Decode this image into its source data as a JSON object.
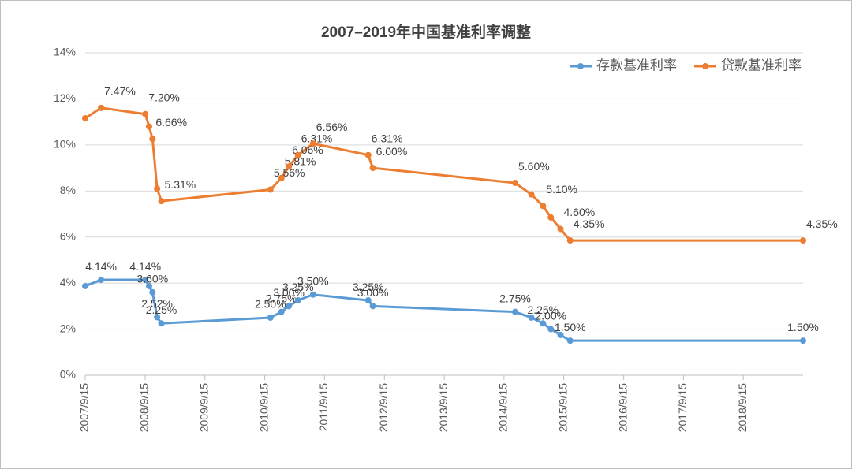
{
  "chart_data": {
    "type": "line",
    "title": "2007–2019年中国基准利率调整",
    "stacked": true,
    "x": [
      "2007/9/15",
      "2007/12/21",
      "2008/9/16",
      "2008/10/9",
      "2008/10/30",
      "2008/11/27",
      "2008/12/23",
      "2010/10/20",
      "2010/12/26",
      "2011/2/9",
      "2011/4/6",
      "2011/7/7",
      "2012/6/8",
      "2012/7/6",
      "2014/11/22",
      "2015/3/1",
      "2015/5/11",
      "2015/6/28",
      "2015/8/26",
      "2015/10/24",
      "2019/9/15"
    ],
    "series": [
      {
        "name": "存款基准利率",
        "color": "#5b9bd5",
        "values": [
          3.87,
          4.14,
          4.14,
          3.87,
          3.6,
          2.52,
          2.25,
          2.5,
          2.75,
          3.0,
          3.25,
          3.5,
          3.25,
          3.0,
          2.75,
          2.5,
          2.25,
          2.0,
          1.75,
          1.5,
          1.5
        ],
        "value_labels": [
          null,
          "4.14%",
          "4.14%",
          null,
          "3.60%",
          "2.52%",
          "2.25%",
          "2.50%",
          "2.75%",
          "3.00%",
          "3.25%",
          "3.50%",
          "3.25%",
          "3.00%",
          "2.75%",
          null,
          "2.25%",
          "2.00%",
          null,
          "1.50%",
          "1.50%"
        ]
      },
      {
        "name": "贷款基准利率",
        "color": "#ed7d31",
        "values": [
          7.29,
          7.47,
          7.2,
          6.93,
          6.66,
          5.58,
          5.31,
          5.56,
          5.81,
          6.06,
          6.31,
          6.56,
          6.31,
          6.0,
          5.6,
          5.35,
          5.1,
          4.85,
          4.6,
          4.35,
          4.35
        ],
        "value_labels": [
          null,
          "7.47%",
          "7.20%",
          null,
          "6.66%",
          null,
          "5.31%",
          "5.56%",
          "5.81%",
          "6.06%",
          "6.31%",
          "6.56%",
          "6.31%",
          "6.00%",
          "5.60%",
          null,
          "5.10%",
          null,
          "4.60%",
          "4.35%",
          "4.35%"
        ]
      }
    ],
    "xlim": [
      "2007/9/15",
      "2019/9/15"
    ],
    "xticks": [
      "2007/9/15",
      "2008/9/15",
      "2009/9/15",
      "2010/9/15",
      "2011/9/15",
      "2012/9/15",
      "2013/9/15",
      "2014/9/15",
      "2015/9/15",
      "2016/9/15",
      "2017/9/15",
      "2018/9/15"
    ],
    "ylim": [
      0,
      14
    ],
    "yticks": [
      {
        "value": 0,
        "label": "0%"
      },
      {
        "value": 2,
        "label": "2%"
      },
      {
        "value": 4,
        "label": "4%"
      },
      {
        "value": 6,
        "label": "6%"
      },
      {
        "value": 8,
        "label": "8%"
      },
      {
        "value": 10,
        "label": "10%"
      },
      {
        "value": 12,
        "label": "12%"
      },
      {
        "value": 14,
        "label": "14%"
      }
    ],
    "grid": true,
    "legend": "top-right"
  }
}
